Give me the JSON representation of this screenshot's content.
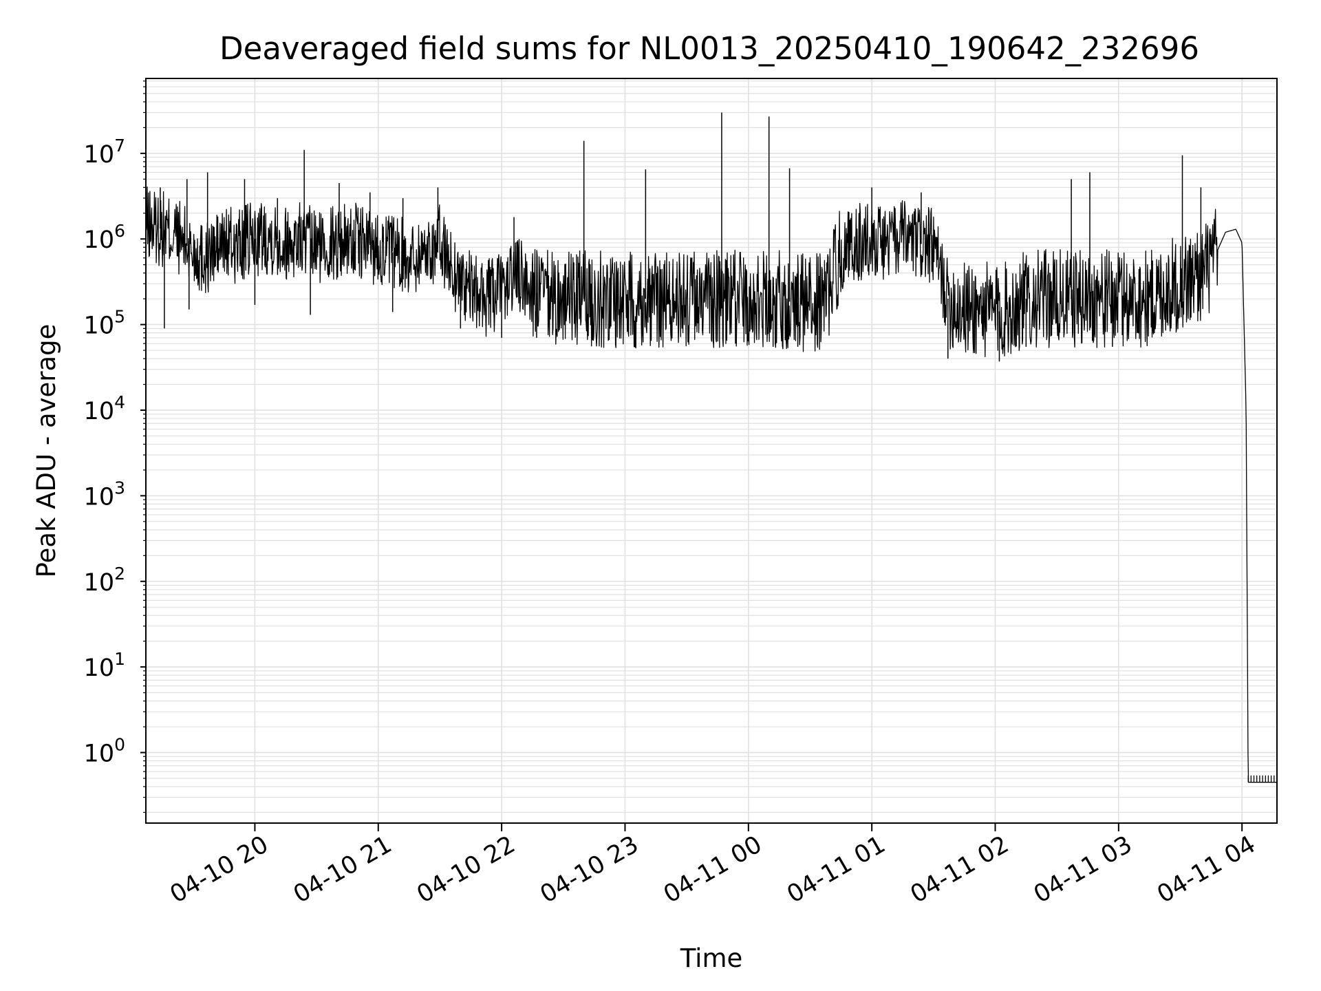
{
  "chart_data": {
    "type": "line",
    "title": "Deaveraged field sums for NL0013_20250410_190642_232696",
    "xlabel": "Time",
    "ylabel": "Peak ADU - average",
    "x_start": "2025-04-10 19:06:42",
    "x_range": [
      "2025-04-10 19:07",
      "2025-04-11 04:17"
    ],
    "y_scale": "log",
    "ylim": [
      0.15,
      75000000
    ],
    "grid": true,
    "line_color": "#000000",
    "grid_color": "#e0e0e0",
    "x_ticks": [
      "04-10 20",
      "04-10 21",
      "04-10 22",
      "04-10 23",
      "04-11 00",
      "04-11 01",
      "04-11 02",
      "04-11 03",
      "04-11 04"
    ],
    "y_ticks": [
      {
        "value": 1,
        "base": "10",
        "exp": "0"
      },
      {
        "value": 10,
        "base": "10",
        "exp": "1"
      },
      {
        "value": 100,
        "base": "10",
        "exp": "2"
      },
      {
        "value": 1000,
        "base": "10",
        "exp": "3"
      },
      {
        "value": 10000,
        "base": "10",
        "exp": "4"
      },
      {
        "value": 100000,
        "base": "10",
        "exp": "5"
      },
      {
        "value": 1000000,
        "base": "10",
        "exp": "6"
      },
      {
        "value": 10000000,
        "base": "10",
        "exp": "7"
      }
    ],
    "series": [
      {
        "values": [
          [
            "2025-04-10 19:07",
            1500000
          ],
          [
            "2025-04-10 19:15",
            1300000
          ],
          [
            "2025-04-10 19:22",
            1100000
          ],
          [
            "2025-04-10 19:30",
            700000
          ],
          [
            "2025-04-10 19:37",
            600000
          ],
          [
            "2025-04-10 19:45",
            900000
          ],
          [
            "2025-04-10 19:52",
            800000
          ],
          [
            "2025-04-10 20:00",
            1000000
          ],
          [
            "2025-04-10 20:07",
            1100000
          ],
          [
            "2025-04-10 20:15",
            900000
          ],
          [
            "2025-04-10 20:22",
            1000000
          ],
          [
            "2025-04-10 20:30",
            800000
          ],
          [
            "2025-04-10 20:37",
            900000
          ],
          [
            "2025-04-10 20:45",
            1000000
          ],
          [
            "2025-04-10 20:52",
            900000
          ],
          [
            "2025-04-10 21:00",
            800000
          ],
          [
            "2025-04-10 21:07",
            700000
          ],
          [
            "2025-04-10 21:15",
            600000
          ],
          [
            "2025-04-10 21:22",
            700000
          ],
          [
            "2025-04-10 21:30",
            900000
          ],
          [
            "2025-04-10 21:37",
            400000
          ],
          [
            "2025-04-10 21:45",
            250000
          ],
          [
            "2025-04-10 21:52",
            200000
          ],
          [
            "2025-04-10 22:00",
            250000
          ],
          [
            "2025-04-10 22:07",
            400000
          ],
          [
            "2025-04-10 22:15",
            250000
          ],
          [
            "2025-04-10 22:22",
            200000
          ],
          [
            "2025-04-10 22:30",
            200000
          ],
          [
            "2025-04-10 22:37",
            200000
          ],
          [
            "2025-04-10 22:45",
            200000
          ],
          [
            "2025-04-10 22:52",
            200000
          ],
          [
            "2025-04-10 23:00",
            200000
          ],
          [
            "2025-04-10 23:07",
            200000
          ],
          [
            "2025-04-10 23:15",
            200000
          ],
          [
            "2025-04-10 23:22",
            200000
          ],
          [
            "2025-04-10 23:30",
            200000
          ],
          [
            "2025-04-10 23:37",
            200000
          ],
          [
            "2025-04-10 23:45",
            200000
          ],
          [
            "2025-04-10 23:52",
            200000
          ],
          [
            "2025-04-11 00:00",
            200000
          ],
          [
            "2025-04-11 00:07",
            200000
          ],
          [
            "2025-04-11 00:15",
            200000
          ],
          [
            "2025-04-11 00:22",
            180000
          ],
          [
            "2025-04-11 00:30",
            180000
          ],
          [
            "2025-04-11 00:37",
            180000
          ],
          [
            "2025-04-11 00:45",
            700000
          ],
          [
            "2025-04-11 00:52",
            900000
          ],
          [
            "2025-04-11 01:00",
            1000000
          ],
          [
            "2025-04-11 01:07",
            900000
          ],
          [
            "2025-04-11 01:15",
            1000000
          ],
          [
            "2025-04-11 01:22",
            900000
          ],
          [
            "2025-04-11 01:30",
            800000
          ],
          [
            "2025-04-11 01:37",
            200000
          ],
          [
            "2025-04-11 01:45",
            150000
          ],
          [
            "2025-04-11 01:52",
            150000
          ],
          [
            "2025-04-11 02:00",
            140000
          ],
          [
            "2025-04-11 02:07",
            150000
          ],
          [
            "2025-04-11 02:15",
            200000
          ],
          [
            "2025-04-11 02:22",
            200000
          ],
          [
            "2025-04-11 02:30",
            200000
          ],
          [
            "2025-04-11 02:37",
            200000
          ],
          [
            "2025-04-11 02:45",
            200000
          ],
          [
            "2025-04-11 02:52",
            200000
          ],
          [
            "2025-04-11 03:00",
            200000
          ],
          [
            "2025-04-11 03:07",
            200000
          ],
          [
            "2025-04-11 03:15",
            200000
          ],
          [
            "2025-04-11 03:22",
            250000
          ],
          [
            "2025-04-11 03:30",
            300000
          ],
          [
            "2025-04-11 03:37",
            350000
          ],
          [
            "2025-04-11 03:45",
            500000
          ],
          [
            "2025-04-11 03:52",
            1200000
          ],
          [
            "2025-04-11 03:57",
            1300000
          ],
          [
            "2025-04-11 04:00",
            900000
          ],
          [
            "2025-04-11 04:02",
            10000
          ],
          [
            "2025-04-11 04:03",
            0.45
          ],
          [
            "2025-04-11 04:17",
            0.45
          ]
        ]
      }
    ],
    "spikes": [
      [
        "2025-04-10 19:14",
        4000000
      ],
      [
        "2025-04-10 19:27",
        5000000
      ],
      [
        "2025-04-10 19:37",
        6000000
      ],
      [
        "2025-04-10 19:55",
        5000000
      ],
      [
        "2025-04-10 20:11",
        3000000
      ],
      [
        "2025-04-10 20:24",
        11000000
      ],
      [
        "2025-04-10 20:41",
        4500000
      ],
      [
        "2025-04-10 20:56",
        3500000
      ],
      [
        "2025-04-10 21:12",
        3000000
      ],
      [
        "2025-04-10 21:29",
        4000000
      ],
      [
        "2025-04-10 22:06",
        1800000
      ],
      [
        "2025-04-10 22:40",
        14000000
      ],
      [
        "2025-04-10 23:10",
        6500000
      ],
      [
        "2025-04-10 23:47",
        30000000
      ],
      [
        "2025-04-11 00:10",
        27000000
      ],
      [
        "2025-04-11 00:20",
        6700000
      ],
      [
        "2025-04-11 01:00",
        4000000
      ],
      [
        "2025-04-11 01:24",
        3500000
      ],
      [
        "2025-04-11 02:37",
        5000000
      ],
      [
        "2025-04-11 02:46",
        6000000
      ],
      [
        "2025-04-11 03:31",
        9500000
      ],
      [
        "2025-04-11 03:40",
        4000000
      ]
    ],
    "dips": [
      [
        "2025-04-10 19:16",
        90000
      ],
      [
        "2025-04-10 19:28",
        150000
      ],
      [
        "2025-04-10 20:00",
        170000
      ],
      [
        "2025-04-10 20:27",
        130000
      ],
      [
        "2025-04-10 21:07",
        140000
      ],
      [
        "2025-04-10 21:40",
        90000
      ],
      [
        "2025-04-10 22:00",
        70000
      ],
      [
        "2025-04-10 22:17",
        70000
      ],
      [
        "2025-04-10 23:43",
        60000
      ],
      [
        "2025-04-11 00:12",
        55000
      ],
      [
        "2025-04-11 00:24",
        55000
      ],
      [
        "2025-04-11 01:37",
        40000
      ],
      [
        "2025-04-11 02:02",
        37000
      ],
      [
        "2025-04-11 02:15",
        55000
      ],
      [
        "2025-04-11 02:57",
        55000
      ]
    ]
  }
}
